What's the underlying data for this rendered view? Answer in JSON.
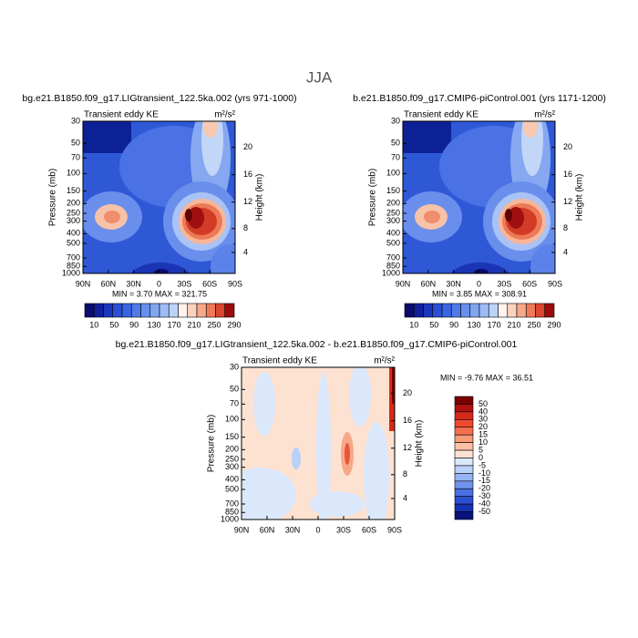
{
  "title": "JJA",
  "panels": [
    {
      "subtitle": "bg.e21.B1850.f09_g17.LIGtransient_122.5ka.002 (yrs 971-1000)",
      "left_label": "Transient eddy KE",
      "units": "m²/s²",
      "y_axis_label": "Pressure (mb)",
      "y2_axis_label": "Height (km)",
      "ylim": [
        1000,
        30
      ],
      "y_ticks": [
        30,
        50,
        70,
        100,
        150,
        200,
        250,
        300,
        400,
        500,
        700,
        850,
        1000
      ],
      "y2_ticks": [
        20,
        16,
        12,
        8,
        4
      ],
      "x_ticks": [
        "90N",
        "60N",
        "30N",
        "0",
        "30S",
        "60S",
        "90S"
      ],
      "stats": "MIN =   3.70  MAX = 321.75",
      "colorbar_labels": [
        10,
        50,
        90,
        130,
        170,
        210,
        250,
        290
      ],
      "colorbar_colors": [
        "#0b0c6e",
        "#10209a",
        "#1a36bf",
        "#2a4fd6",
        "#3a64e2",
        "#4f7ae9",
        "#6690ee",
        "#80a6f2",
        "#9cbcf5",
        "#bcd3f8",
        "#fff4ee",
        "#fbd2bd",
        "#f6a98a",
        "#ee7a5a",
        "#dc4530",
        "#9c0c0c"
      ]
    },
    {
      "subtitle": "b.e21.B1850.f09_g17.CMIP6-piControl.001 (yrs 1171-1200)",
      "left_label": "Transient eddy KE",
      "units": "m²/s²",
      "y_axis_label": "Pressure (mb)",
      "y2_axis_label": "Height (km)",
      "ylim": [
        1000,
        30
      ],
      "y_ticks": [
        30,
        50,
        70,
        100,
        150,
        200,
        250,
        300,
        400,
        500,
        700,
        850,
        1000
      ],
      "y2_ticks": [
        20,
        16,
        12,
        8,
        4
      ],
      "x_ticks": [
        "90N",
        "60N",
        "30N",
        "0",
        "30S",
        "60S",
        "90S"
      ],
      "stats": "MIN =   3.85  MAX = 308.91",
      "colorbar_labels": [
        10,
        50,
        90,
        130,
        170,
        210,
        250,
        290
      ],
      "colorbar_colors": [
        "#0b0c6e",
        "#10209a",
        "#1a36bf",
        "#2a4fd6",
        "#3a64e2",
        "#4f7ae9",
        "#6690ee",
        "#80a6f2",
        "#9cbcf5",
        "#bcd3f8",
        "#fff4ee",
        "#fbd2bd",
        "#f6a98a",
        "#ee7a5a",
        "#dc4530",
        "#9c0c0c"
      ]
    },
    {
      "subtitle": "bg.e21.B1850.f09_g17.LIGtransient_122.5ka.002 - b.e21.B1850.f09_g17.CMIP6-piControl.001",
      "left_label": "Transient eddy KE",
      "units": "m²/s²",
      "y_axis_label": "Pressure (mb)",
      "y2_axis_label": "Height (km)",
      "ylim": [
        1000,
        30
      ],
      "y_ticks": [
        30,
        50,
        70,
        100,
        150,
        200,
        250,
        300,
        400,
        500,
        700,
        850,
        1000
      ],
      "y2_ticks": [
        20,
        16,
        12,
        8,
        4
      ],
      "x_ticks": [
        "90N",
        "60N",
        "30N",
        "0",
        "30S",
        "60S",
        "90S"
      ],
      "stats": "MIN =   -9.76  MAX =  36.51",
      "colorbar_labels": [
        50,
        40,
        30,
        20,
        15,
        10,
        5,
        0,
        -5,
        -10,
        -15,
        -20,
        -30,
        -40,
        -50
      ],
      "colorbar_colors": [
        "#7a0000",
        "#b01010",
        "#d52a1a",
        "#ee4a30",
        "#f4704e",
        "#f79a78",
        "#fbc0a6",
        "#fde2d2",
        "#dbe8fb",
        "#b9d0f8",
        "#95b4f3",
        "#6f92ec",
        "#4a6fe2",
        "#2c4fd2",
        "#1530b0",
        "#09137c"
      ]
    }
  ]
}
